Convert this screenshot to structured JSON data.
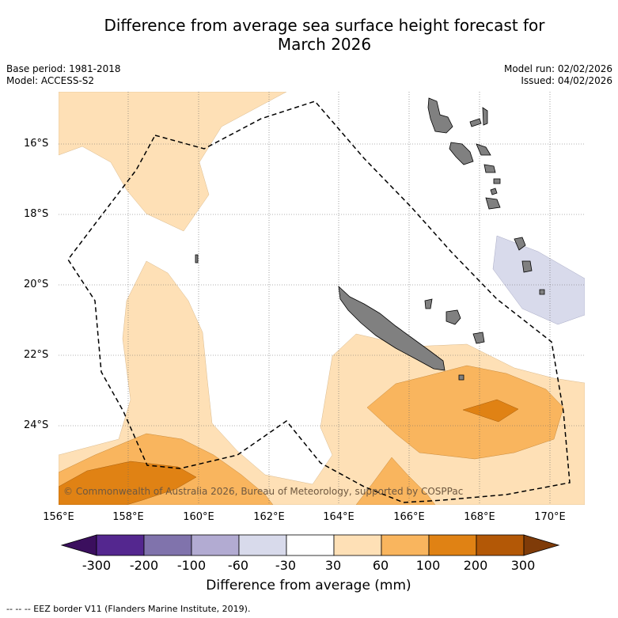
{
  "title_line1": "Difference from average sea surface height forecast for",
  "title_line2": "March 2026",
  "meta_left": {
    "base_period": "Base period: 1981-2018",
    "model": "Model: ACCESS-S2"
  },
  "meta_right": {
    "model_run": "Model run: 02/02/2026",
    "issued": "Issued: 04/02/2026"
  },
  "lat_labels": [
    "16°S",
    "18°S",
    "20°S",
    "22°S",
    "24°S"
  ],
  "lon_labels": [
    "156°E",
    "158°E",
    "160°E",
    "162°E",
    "164°E",
    "166°E",
    "168°E",
    "170°E"
  ],
  "copyright": "© Commonwealth of Australia 2026, Bureau of Meteorology, supported by COSPPac",
  "colorbar": {
    "ticks": [
      "-300",
      "-200",
      "-100",
      "-60",
      "-30",
      "30",
      "60",
      "100",
      "200",
      "300"
    ],
    "colors": [
      "#3b0f5e",
      "#54278f",
      "#8073ac",
      "#b2abd2",
      "#d8daeb",
      "#ffffff",
      "#fee0b6",
      "#f9b55e",
      "#e08214",
      "#b35806",
      "#7f3b08"
    ],
    "label": "Difference from average (mm)"
  },
  "footer": "--  --  -- EEZ border V11 (Flanders Marine Institute, 2019).",
  "colors": {
    "low": "#fee0b6",
    "mid": "#f9b55e",
    "high": "#e08214",
    "neg": "#d8daeb",
    "land": "#808080"
  }
}
